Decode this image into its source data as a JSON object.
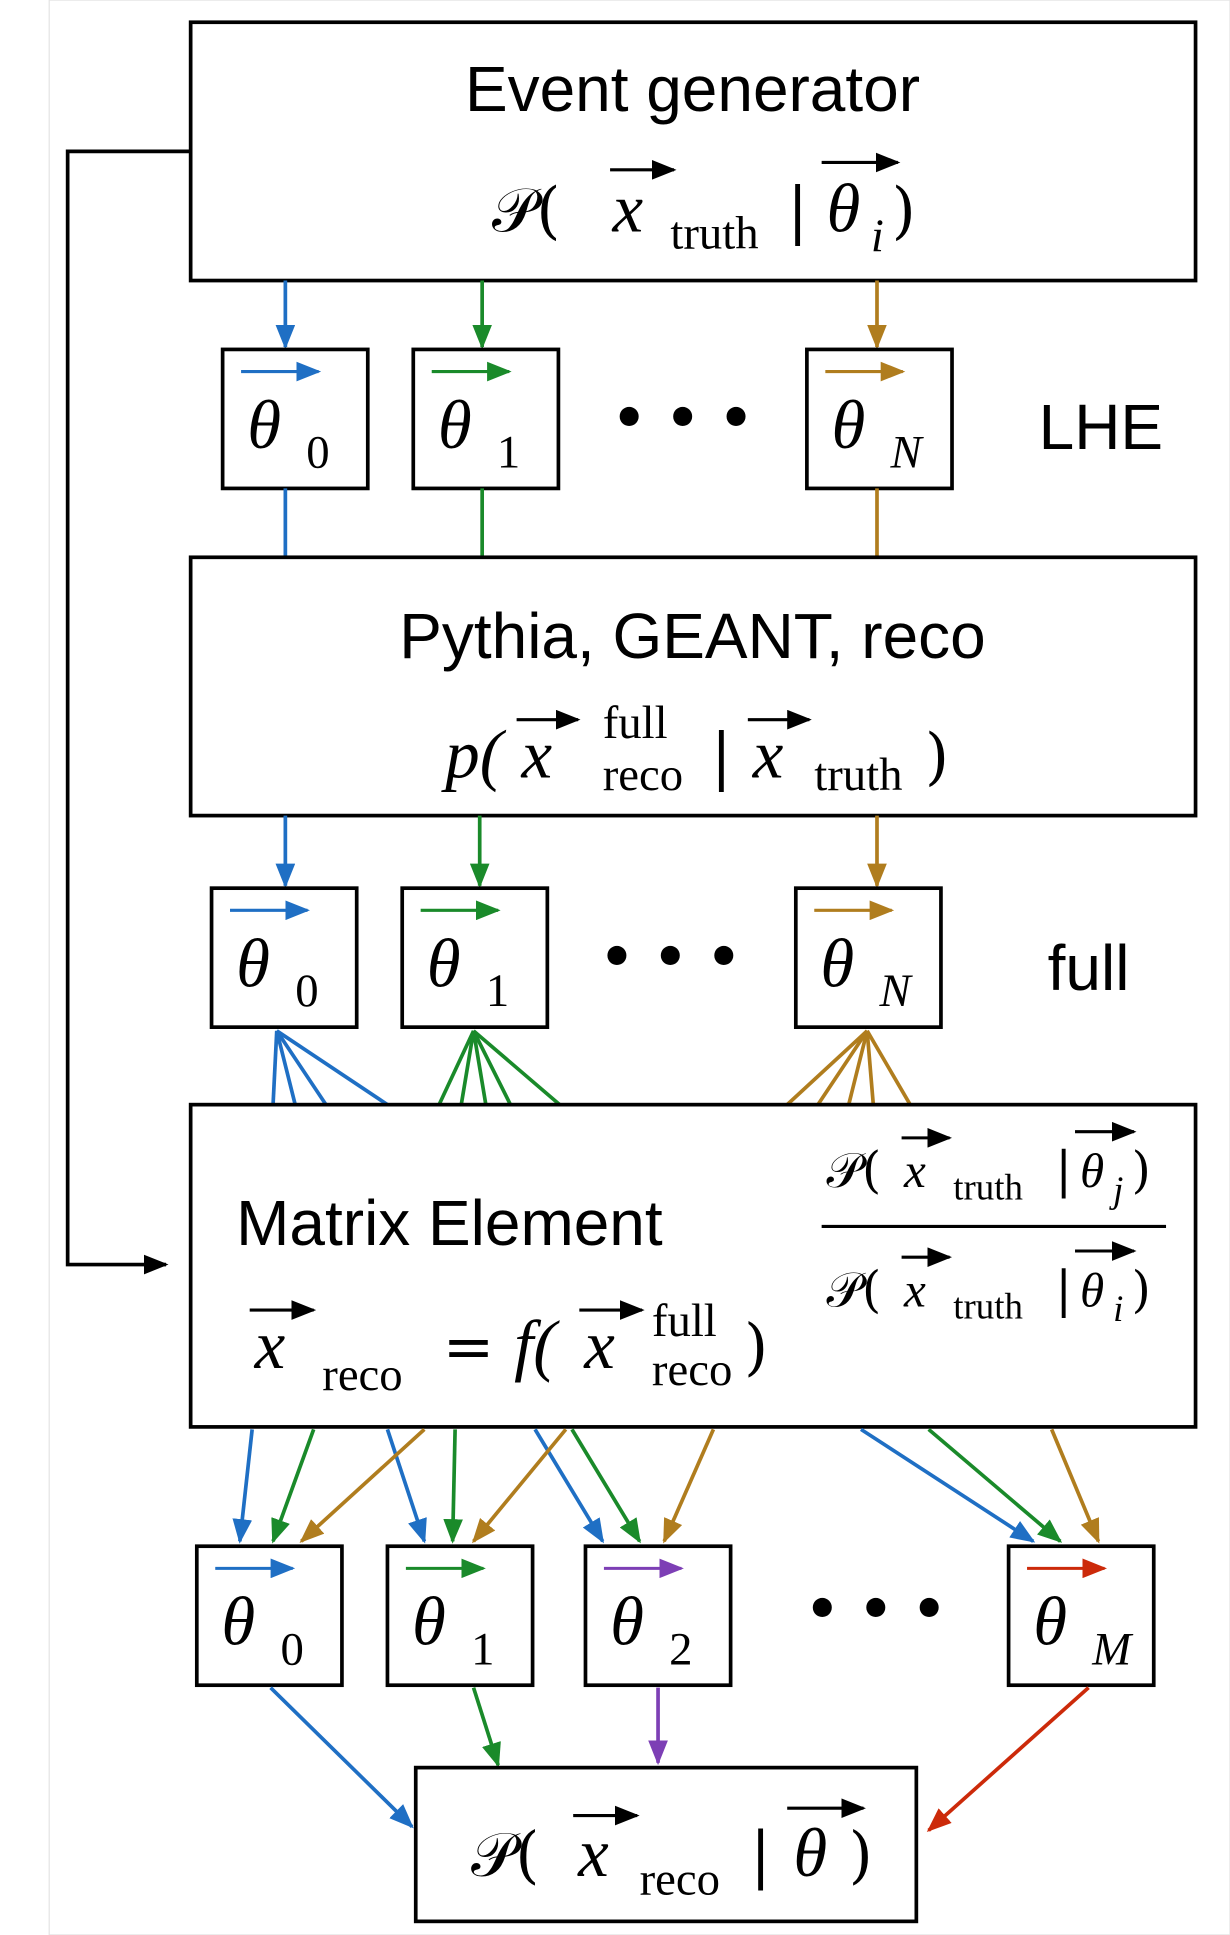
{
  "event_generator": {
    "title": "Event generator",
    "formula": {
      "open": "𝒫(",
      "x": "x",
      "x_sub": "truth",
      "given": "|",
      "theta": "θ",
      "theta_sub": "i",
      "close": ")"
    }
  },
  "lhe": {
    "label": "LHE",
    "ellipsis": "• • •",
    "thetas": [
      {
        "symbol": "θ",
        "index": "0"
      },
      {
        "symbol": "θ",
        "index": "1"
      },
      {
        "symbol": "θ",
        "index": "N"
      }
    ]
  },
  "simulation": {
    "title": "Pythia, GEANT, reco",
    "formula": {
      "open": "p(",
      "x": "x",
      "x_sup": "full",
      "x_sub": "reco",
      "given": "|",
      "x2": "x",
      "x2_sub": "truth",
      "close": ")"
    }
  },
  "full": {
    "label": "full",
    "ellipsis": "• • •",
    "thetas": [
      {
        "symbol": "θ",
        "index": "0"
      },
      {
        "symbol": "θ",
        "index": "1"
      },
      {
        "symbol": "θ",
        "index": "N"
      }
    ]
  },
  "matrix_element": {
    "title": "Matrix Element",
    "weight": {
      "numerator": {
        "open": "𝒫(",
        "x": "x",
        "x_sub": "truth",
        "given": "|",
        "theta": "θ",
        "theta_sub": "j",
        "close": ")"
      },
      "denominator": {
        "open": "𝒫(",
        "x": "x",
        "x_sub": "truth",
        "given": "|",
        "theta": "θ",
        "theta_sub": "i",
        "close": ")"
      }
    },
    "reco_map": {
      "x": "x",
      "x_sub": "reco",
      "equals": "=",
      "open": "f(",
      "x2": "x",
      "x2_sup": "full",
      "x2_sub": "reco",
      "close": ")"
    }
  },
  "reco": {
    "ellipsis": "• • •",
    "thetas": [
      {
        "symbol": "θ",
        "index": "0"
      },
      {
        "symbol": "θ",
        "index": "1"
      },
      {
        "symbol": "θ",
        "index": "2"
      },
      {
        "symbol": "θ",
        "index": "M"
      }
    ]
  },
  "likelihood": {
    "formula": {
      "open": "𝒫(",
      "x": "x",
      "x_sub": "reco",
      "given": "|",
      "theta": "θ",
      "close": ")"
    }
  }
}
